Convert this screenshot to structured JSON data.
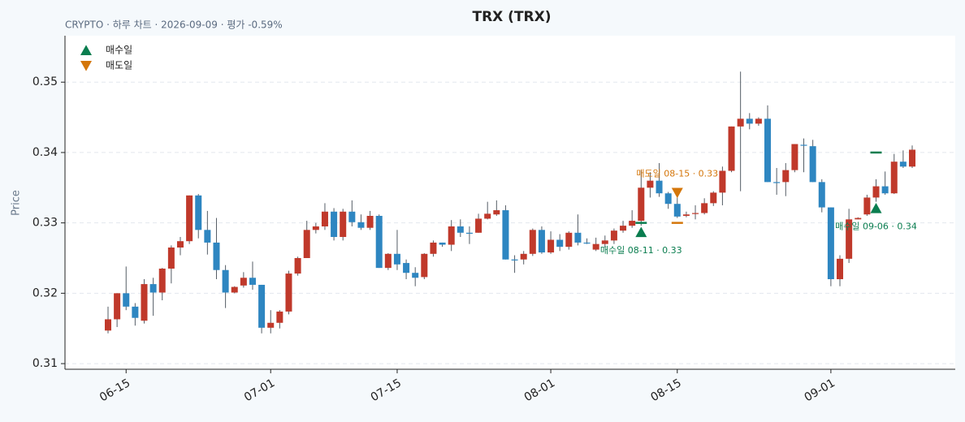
{
  "chart_data": {
    "type": "candlestick",
    "title": "TRX (TRX)",
    "subtitle": "CRYPTO · 하루 차트 · 2026-09-09 · 평가 -0.59%",
    "y_label": "Price",
    "x": [
      "06-13",
      "06-14",
      "06-15",
      "06-16",
      "06-17",
      "06-18",
      "06-19",
      "06-20",
      "06-21",
      "06-22",
      "06-23",
      "06-24",
      "06-25",
      "06-26",
      "06-27",
      "06-28",
      "06-29",
      "06-30",
      "07-01",
      "07-02",
      "07-03",
      "07-04",
      "07-05",
      "07-06",
      "07-07",
      "07-08",
      "07-09",
      "07-10",
      "07-11",
      "07-12",
      "07-13",
      "07-14",
      "07-15",
      "07-16",
      "07-17",
      "07-18",
      "07-19",
      "07-20",
      "07-21",
      "07-22",
      "07-23",
      "07-24",
      "07-25",
      "07-26",
      "07-27",
      "07-28",
      "07-29",
      "07-30",
      "07-31",
      "08-01",
      "08-02",
      "08-03",
      "08-04",
      "08-05",
      "08-06",
      "08-07",
      "08-08",
      "08-09",
      "08-10",
      "08-11",
      "08-12",
      "08-13",
      "08-14",
      "08-15",
      "08-16",
      "08-17",
      "08-18",
      "08-19",
      "08-20",
      "08-21",
      "08-22",
      "08-23",
      "08-24",
      "08-25",
      "08-26",
      "08-27",
      "08-28",
      "08-29",
      "08-30",
      "08-31",
      "09-01",
      "09-02",
      "09-03",
      "09-04",
      "09-05",
      "09-06",
      "09-07",
      "09-08",
      "09-09",
      "09-10"
    ],
    "open": [
      0.3147,
      0.3163,
      0.32,
      0.3181,
      0.3161,
      0.3213,
      0.3201,
      0.3235,
      0.3265,
      0.3274,
      0.3339,
      0.329,
      0.3272,
      0.3233,
      0.3201,
      0.3211,
      0.3222,
      0.3212,
      0.3151,
      0.3158,
      0.3174,
      0.3228,
      0.325,
      0.329,
      0.3295,
      0.3316,
      0.328,
      0.3316,
      0.3301,
      0.3293,
      0.331,
      0.3236,
      0.3256,
      0.3243,
      0.3229,
      0.3223,
      0.3256,
      0.3272,
      0.3269,
      0.3295,
      0.3286,
      0.3286,
      0.3306,
      0.3312,
      0.3318,
      0.3248,
      0.3248,
      0.3256,
      0.329,
      0.3258,
      0.3276,
      0.3266,
      0.3286,
      0.3272,
      0.3262,
      0.327,
      0.3275,
      0.3289,
      0.3296,
      0.3303,
      0.335,
      0.336,
      0.3342,
      0.3327,
      0.331,
      0.3313,
      0.3314,
      0.3328,
      0.3343,
      0.3374,
      0.3437,
      0.3448,
      0.3441,
      0.3448,
      0.3358,
      0.3358,
      0.3375,
      0.3411,
      0.3409,
      0.3358,
      0.3322,
      0.322,
      0.3249,
      0.3305,
      0.3312,
      0.3336,
      0.3352,
      0.3342,
      0.3387,
      0.338
    ],
    "high": [
      0.3181,
      0.32,
      0.3238,
      0.3186,
      0.322,
      0.3222,
      0.3236,
      0.3268,
      0.328,
      0.3339,
      0.3341,
      0.3317,
      0.3307,
      0.324,
      0.321,
      0.323,
      0.3245,
      0.3212,
      0.3176,
      0.3176,
      0.3232,
      0.3252,
      0.3303,
      0.33,
      0.3328,
      0.3321,
      0.332,
      0.3332,
      0.3312,
      0.3317,
      0.3312,
      0.3257,
      0.329,
      0.3248,
      0.3237,
      0.3257,
      0.3275,
      0.3272,
      0.3304,
      0.3305,
      0.3295,
      0.3313,
      0.333,
      0.3332,
      0.3325,
      0.3254,
      0.326,
      0.3292,
      0.3295,
      0.3288,
      0.3284,
      0.3288,
      0.3312,
      0.3278,
      0.3279,
      0.3282,
      0.3292,
      0.3303,
      0.3318,
      0.3375,
      0.3372,
      0.3385,
      0.3344,
      0.3336,
      0.3316,
      0.3325,
      0.3335,
      0.3345,
      0.338,
      0.3437,
      0.3515,
      0.3456,
      0.345,
      0.3467,
      0.3378,
      0.3385,
      0.3412,
      0.342,
      0.3418,
      0.3362,
      0.3322,
      0.3254,
      0.332,
      0.3308,
      0.334,
      0.3362,
      0.3373,
      0.3398,
      0.3403,
      0.341
    ],
    "low": [
      0.3143,
      0.3152,
      0.3176,
      0.3154,
      0.3157,
      0.3168,
      0.319,
      0.3214,
      0.3254,
      0.327,
      0.3278,
      0.3255,
      0.322,
      0.3179,
      0.32,
      0.3208,
      0.3205,
      0.3143,
      0.3143,
      0.315,
      0.317,
      0.3225,
      0.325,
      0.3285,
      0.329,
      0.3275,
      0.3275,
      0.3295,
      0.329,
      0.329,
      0.3236,
      0.3233,
      0.3233,
      0.322,
      0.321,
      0.322,
      0.3252,
      0.3266,
      0.326,
      0.328,
      0.327,
      0.3286,
      0.3305,
      0.331,
      0.3248,
      0.3229,
      0.3241,
      0.3253,
      0.3256,
      0.3256,
      0.326,
      0.3262,
      0.3268,
      0.327,
      0.326,
      0.3265,
      0.327,
      0.3286,
      0.3293,
      0.3296,
      0.3336,
      0.3337,
      0.332,
      0.3307,
      0.3308,
      0.3305,
      0.3312,
      0.3324,
      0.3325,
      0.3372,
      0.3345,
      0.3433,
      0.3438,
      0.3358,
      0.334,
      0.3338,
      0.3372,
      0.3372,
      0.3358,
      0.3315,
      0.321,
      0.321,
      0.3243,
      0.3305,
      0.331,
      0.333,
      0.334,
      0.3341,
      0.3378,
      0.3378
    ],
    "close": [
      0.3163,
      0.32,
      0.3181,
      0.3165,
      0.3213,
      0.3201,
      0.3235,
      0.3265,
      0.3274,
      0.3339,
      0.329,
      0.3272,
      0.3233,
      0.3201,
      0.3209,
      0.3222,
      0.3212,
      0.3151,
      0.3158,
      0.3174,
      0.3228,
      0.325,
      0.329,
      0.3295,
      0.3316,
      0.328,
      0.3316,
      0.3301,
      0.3293,
      0.331,
      0.3236,
      0.3256,
      0.3241,
      0.3229,
      0.3222,
      0.3256,
      0.3272,
      0.3269,
      0.3295,
      0.3286,
      0.3285,
      0.3306,
      0.3313,
      0.3318,
      0.3248,
      0.3247,
      0.3256,
      0.329,
      0.3258,
      0.3276,
      0.3266,
      0.3286,
      0.3272,
      0.3271,
      0.327,
      0.3275,
      0.3289,
      0.3296,
      0.3303,
      0.335,
      0.336,
      0.3342,
      0.3327,
      0.3309,
      0.3312,
      0.3314,
      0.3328,
      0.3343,
      0.3374,
      0.3437,
      0.3448,
      0.3441,
      0.3448,
      0.3358,
      0.3357,
      0.3375,
      0.3412,
      0.341,
      0.3358,
      0.3322,
      0.322,
      0.3249,
      0.3305,
      0.3307,
      0.3336,
      0.3352,
      0.3342,
      0.3387,
      0.338,
      0.3404
    ],
    "up_color": "#c0392b",
    "down_color": "#2e86c1",
    "wick_color": "#555d66",
    "ylim": [
      0.3092,
      0.3566
    ],
    "yticks": [
      0.31,
      0.32,
      0.33,
      0.34,
      0.35
    ],
    "xticks": [
      "06-15",
      "07-01",
      "07-15",
      "08-01",
      "08-15",
      "09-01"
    ],
    "grid": true,
    "legend": [
      {
        "label": "매수일",
        "color": "#0a7d4f",
        "marker": "up"
      },
      {
        "label": "매도일",
        "color": "#d4760a",
        "marker": "down"
      }
    ],
    "legend_position": "upper left",
    "markers": [
      {
        "kind": "buy",
        "date": "08-11",
        "price": 0.33,
        "label": "매수일 08-11 · 0.33"
      },
      {
        "kind": "sell",
        "date": "08-15",
        "price": 0.33,
        "label": "매도일 08-15 · 0.33"
      },
      {
        "kind": "buy",
        "date": "09-06",
        "price": 0.34,
        "label": "매수일 09-06 · 0.34"
      }
    ]
  }
}
